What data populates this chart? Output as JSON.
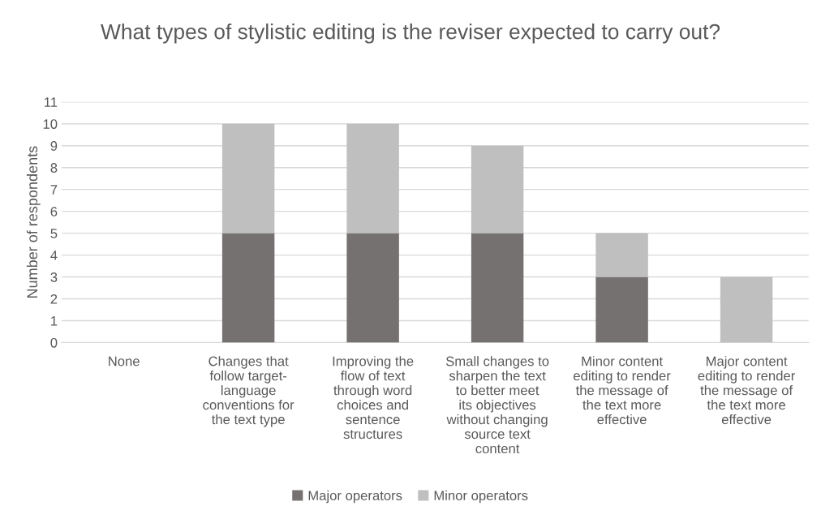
{
  "chart_data": {
    "type": "bar",
    "title": "What types of stylistic editing is the reviser expected to carry out?",
    "ylabel": "Number of respondents",
    "categories": [
      "None",
      "Changes that follow target-language conventions for the text type",
      "Improving the flow of text through word choices and sentence structures",
      "Small changes to sharpen the text to better meet its objectives without changing source text content",
      "Minor content editing to render the message of the text more effective",
      "Major content editing to render the message of the text more effective"
    ],
    "series": [
      {
        "name": "Major operators",
        "color": "#767171",
        "values": [
          0,
          5,
          5,
          5,
          3,
          0
        ]
      },
      {
        "name": "Minor operators",
        "color": "#bfbfbf",
        "values": [
          0,
          5,
          5,
          4,
          2,
          3
        ]
      }
    ],
    "stacked": true,
    "ylim": [
      0,
      11
    ],
    "yticks": [
      0,
      1,
      2,
      3,
      4,
      5,
      6,
      7,
      8,
      9,
      10,
      11
    ],
    "grid": "y",
    "legend": "bottom"
  }
}
